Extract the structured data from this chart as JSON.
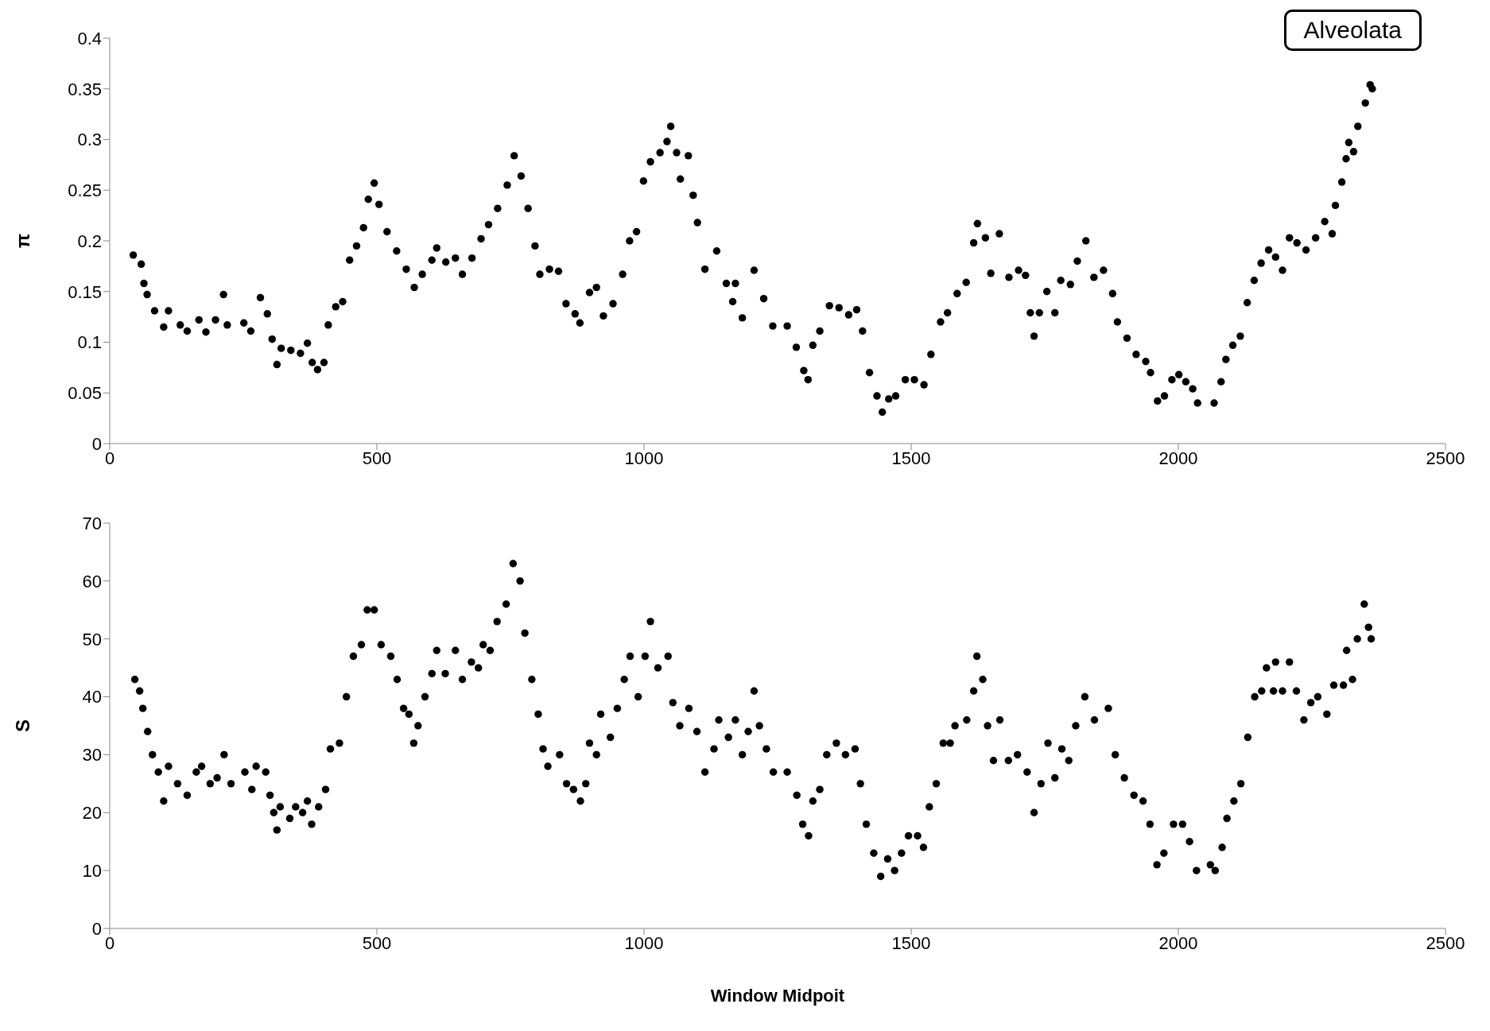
{
  "chart_data": [
    {
      "type": "scatter",
      "ylabel": "π",
      "annotations": [
        "Alveolata"
      ],
      "marker": "circle",
      "grid": false,
      "xlim": [
        0,
        2500
      ],
      "xticks": [
        0,
        500,
        1000,
        1500,
        2000,
        2500
      ],
      "ylim": [
        0,
        0.4
      ],
      "yticks": [
        0,
        0.05,
        0.1,
        0.15,
        0.2,
        0.25,
        0.3,
        0.35,
        0.4
      ],
      "series": [
        {
          "color": "#000000",
          "x": [
            44,
            59,
            64,
            70,
            84,
            101,
            110,
            132,
            145,
            167,
            180,
            198,
            213,
            220,
            251,
            264,
            282,
            295,
            304,
            313,
            321,
            339,
            357,
            370,
            379,
            389,
            401,
            409,
            423,
            436,
            449,
            462,
            475,
            484,
            495,
            504,
            519,
            537,
            555,
            570,
            585,
            603,
            612,
            629,
            647,
            660,
            678,
            695,
            709,
            726,
            744,
            757,
            770,
            783,
            796,
            805,
            823,
            840,
            854,
            871,
            880,
            898,
            911,
            924,
            942,
            960,
            973,
            986,
            999,
            1012,
            1030,
            1043,
            1050,
            1061,
            1068,
            1083,
            1092,
            1100,
            1114,
            1136,
            1154,
            1166,
            1171,
            1184,
            1206,
            1224,
            1241,
            1268,
            1285,
            1299,
            1307,
            1316,
            1329,
            1347,
            1365,
            1383,
            1398,
            1409,
            1422,
            1436,
            1446,
            1458,
            1471,
            1489,
            1506,
            1524,
            1537,
            1555,
            1568,
            1586,
            1603,
            1617,
            1624,
            1639,
            1649,
            1665,
            1683,
            1701,
            1714,
            1723,
            1730,
            1740,
            1754,
            1769,
            1780,
            1798,
            1811,
            1827,
            1842,
            1860,
            1877,
            1886,
            1904,
            1921,
            1939,
            1948,
            1961,
            1974,
            1988,
            2001,
            2014,
            2027,
            2036,
            2067,
            2080,
            2089,
            2102,
            2116,
            2129,
            2142,
            2155,
            2169,
            2182,
            2195,
            2208,
            2222,
            2239,
            2257,
            2274,
            2288,
            2294,
            2306,
            2314,
            2319,
            2328,
            2336,
            2350,
            2359,
            2363
          ],
          "values": [
            0.186,
            0.177,
            0.158,
            0.147,
            0.131,
            0.115,
            0.131,
            0.117,
            0.111,
            0.122,
            0.11,
            0.122,
            0.147,
            0.117,
            0.119,
            0.111,
            0.144,
            0.128,
            0.103,
            0.078,
            0.094,
            0.092,
            0.089,
            0.099,
            0.08,
            0.073,
            0.08,
            0.117,
            0.135,
            0.14,
            0.181,
            0.195,
            0.213,
            0.241,
            0.257,
            0.236,
            0.209,
            0.19,
            0.172,
            0.154,
            0.167,
            0.181,
            0.193,
            0.179,
            0.183,
            0.167,
            0.183,
            0.202,
            0.216,
            0.232,
            0.255,
            0.284,
            0.264,
            0.232,
            0.195,
            0.167,
            0.172,
            0.17,
            0.138,
            0.128,
            0.119,
            0.149,
            0.154,
            0.126,
            0.138,
            0.167,
            0.2,
            0.209,
            0.259,
            0.278,
            0.287,
            0.298,
            0.313,
            0.287,
            0.261,
            0.284,
            0.245,
            0.218,
            0.172,
            0.19,
            0.158,
            0.14,
            0.158,
            0.124,
            0.171,
            0.143,
            0.116,
            0.116,
            0.095,
            0.072,
            0.063,
            0.097,
            0.111,
            0.136,
            0.134,
            0.127,
            0.132,
            0.111,
            0.07,
            0.047,
            0.031,
            0.044,
            0.047,
            0.063,
            0.063,
            0.058,
            0.088,
            0.12,
            0.129,
            0.148,
            0.159,
            0.198,
            0.217,
            0.203,
            0.168,
            0.207,
            0.164,
            0.171,
            0.166,
            0.129,
            0.106,
            0.129,
            0.15,
            0.129,
            0.161,
            0.157,
            0.18,
            0.2,
            0.164,
            0.171,
            0.148,
            0.12,
            0.104,
            0.088,
            0.081,
            0.07,
            0.042,
            0.047,
            0.063,
            0.068,
            0.061,
            0.054,
            0.04,
            0.04,
            0.061,
            0.083,
            0.097,
            0.106,
            0.139,
            0.161,
            0.178,
            0.191,
            0.184,
            0.171,
            0.203,
            0.198,
            0.191,
            0.203,
            0.219,
            0.207,
            0.235,
            0.258,
            0.281,
            0.297,
            0.288,
            0.313,
            0.336,
            0.354,
            0.35
          ]
        }
      ]
    },
    {
      "type": "scatter",
      "xlabel": "Window Midpoit",
      "ylabel": "S",
      "marker": "circle",
      "grid": false,
      "xlim": [
        0,
        2500
      ],
      "xticks": [
        0,
        500,
        1000,
        1500,
        2000,
        2500
      ],
      "ylim": [
        0,
        70
      ],
      "yticks": [
        0,
        10,
        20,
        30,
        40,
        50,
        60,
        70
      ],
      "series": [
        {
          "color": "#000000",
          "x": [
            47,
            56,
            62,
            71,
            80,
            91,
            101,
            110,
            127,
            145,
            162,
            172,
            188,
            201,
            214,
            227,
            253,
            266,
            274,
            292,
            300,
            307,
            313,
            319,
            337,
            348,
            361,
            370,
            378,
            391,
            404,
            413,
            430,
            443,
            456,
            471,
            482,
            495,
            508,
            526,
            538,
            550,
            560,
            569,
            577,
            590,
            603,
            612,
            628,
            647,
            660,
            677,
            690,
            699,
            712,
            725,
            742,
            755,
            768,
            777,
            790,
            802,
            811,
            820,
            842,
            855,
            868,
            881,
            891,
            898,
            911,
            919,
            937,
            950,
            963,
            974,
            989,
            1002,
            1012,
            1026,
            1045,
            1054,
            1067,
            1084,
            1099,
            1114,
            1131,
            1140,
            1158,
            1171,
            1184,
            1195,
            1206,
            1216,
            1229,
            1242,
            1268,
            1286,
            1297,
            1308,
            1316,
            1329,
            1342,
            1360,
            1377,
            1395,
            1405,
            1416,
            1430,
            1443,
            1456,
            1469,
            1482,
            1495,
            1512,
            1523,
            1534,
            1547,
            1560,
            1573,
            1582,
            1604,
            1617,
            1623,
            1634,
            1643,
            1654,
            1666,
            1682,
            1699,
            1717,
            1730,
            1743,
            1756,
            1769,
            1782,
            1795,
            1808,
            1825,
            1843,
            1869,
            1882,
            1899,
            1917,
            1934,
            1947,
            1960,
            1973,
            1991,
            2008,
            2021,
            2034,
            2060,
            2069,
            2082,
            2091,
            2104,
            2117,
            2130,
            2143,
            2156,
            2165,
            2178,
            2182,
            2195,
            2208,
            2221,
            2235,
            2248,
            2261,
            2278,
            2291,
            2309,
            2315,
            2326,
            2335,
            2348,
            2356,
            2361
          ],
          "values": [
            43,
            41,
            38,
            34,
            30,
            27,
            22,
            28,
            25,
            23,
            27,
            28,
            25,
            26,
            30,
            25,
            27,
            24,
            28,
            27,
            23,
            20,
            17,
            21,
            19,
            21,
            20,
            22,
            18,
            21,
            24,
            31,
            32,
            40,
            47,
            49,
            55,
            55,
            49,
            47,
            43,
            38,
            37,
            32,
            35,
            40,
            44,
            48,
            44,
            48,
            43,
            46,
            45,
            49,
            48,
            53,
            56,
            63,
            60,
            51,
            43,
            37,
            31,
            28,
            30,
            25,
            24,
            22,
            25,
            32,
            30,
            37,
            33,
            38,
            43,
            47,
            40,
            47,
            53,
            45,
            47,
            39,
            35,
            38,
            34,
            27,
            31,
            36,
            33,
            36,
            30,
            34,
            41,
            35,
            31,
            27,
            27,
            23,
            18,
            16,
            22,
            24,
            30,
            32,
            30,
            31,
            25,
            18,
            13,
            9,
            12,
            10,
            13,
            16,
            16,
            14,
            21,
            25,
            32,
            32,
            35,
            36,
            41,
            47,
            43,
            35,
            29,
            36,
            29,
            30,
            27,
            20,
            25,
            32,
            26,
            31,
            29,
            35,
            40,
            36,
            38,
            30,
            26,
            23,
            22,
            18,
            11,
            13,
            18,
            18,
            15,
            10,
            11,
            10,
            14,
            19,
            22,
            25,
            33,
            40,
            41,
            45,
            41,
            46,
            41,
            46,
            41,
            36,
            39,
            40,
            37,
            42,
            42,
            48,
            43,
            50,
            56,
            52,
            50
          ]
        }
      ]
    }
  ]
}
